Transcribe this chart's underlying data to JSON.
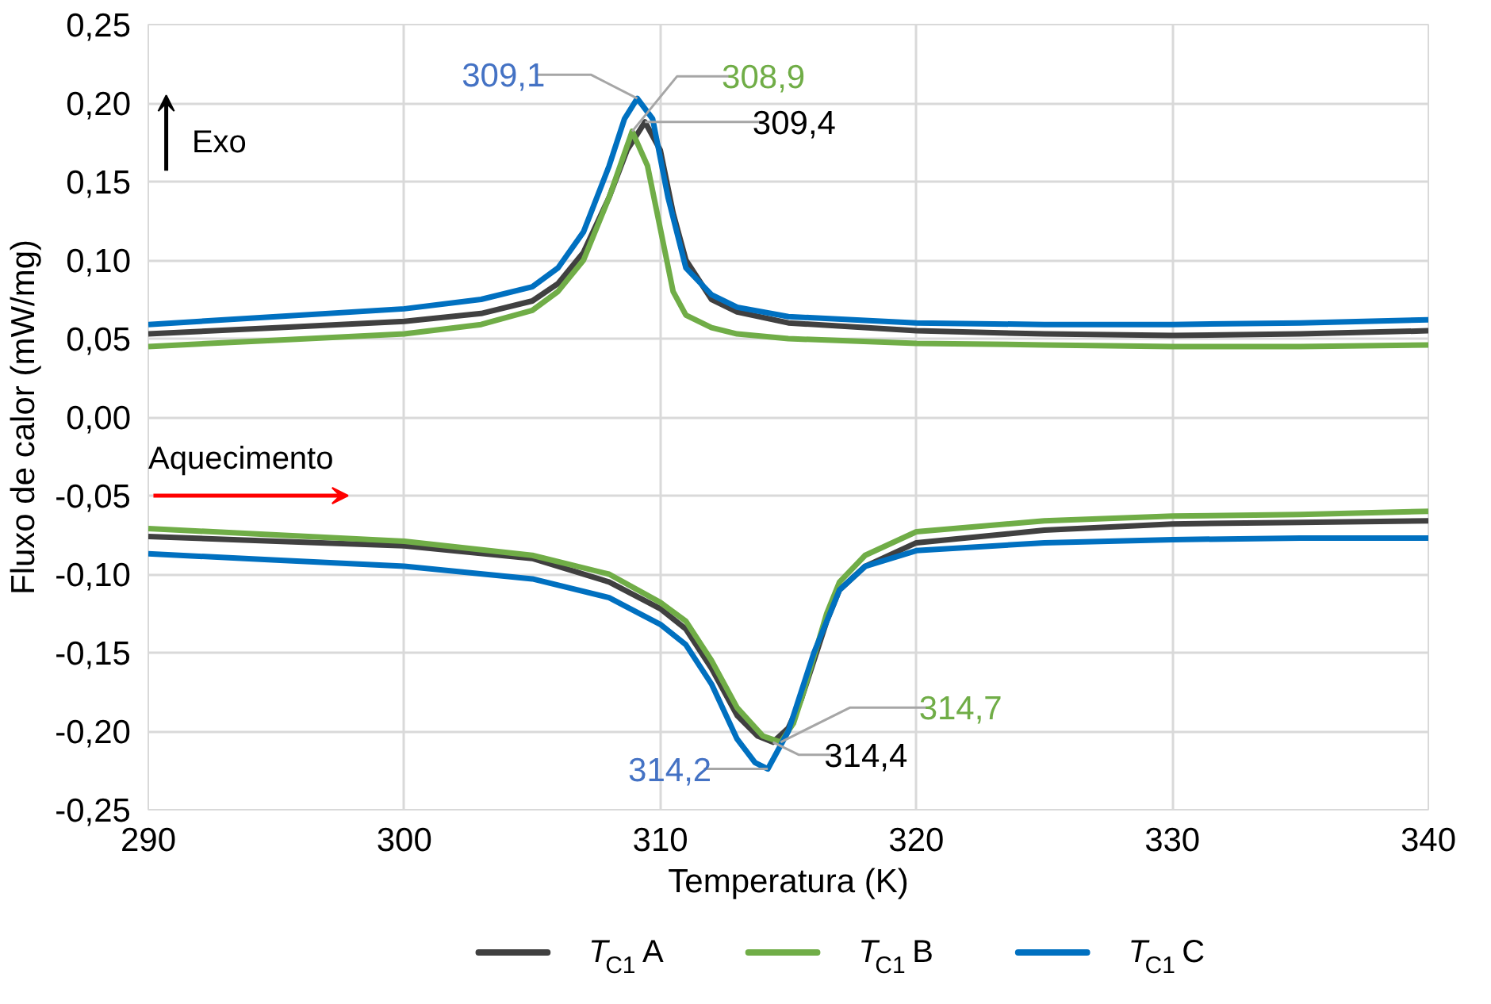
{
  "chart_data": {
    "type": "line",
    "xlabel": "Temperatura (K)",
    "ylabel": "Fluxo de calor (mW/mg)",
    "xlim": [
      290,
      340
    ],
    "xticks": [
      290,
      300,
      310,
      320,
      330,
      340
    ],
    "ylim": [
      -0.25,
      0.25
    ],
    "yticks": [
      {
        "value": -0.25,
        "label": "-0,25"
      },
      {
        "value": -0.2,
        "label": "-0,20"
      },
      {
        "value": -0.15,
        "label": "-0,15"
      },
      {
        "value": -0.1,
        "label": "-0,10"
      },
      {
        "value": -0.05,
        "label": "-0,05"
      },
      {
        "value": 0,
        "label": "0,00"
      },
      {
        "value": 0.05,
        "label": "0,05"
      },
      {
        "value": 0.1,
        "label": "0,10"
      },
      {
        "value": 0.15,
        "label": "0,15"
      },
      {
        "value": 0.2,
        "label": "0,20"
      },
      {
        "value": 0.25,
        "label": "0,25"
      }
    ],
    "grid": true,
    "legend": "bottom",
    "line_style": "solid",
    "marker": "none",
    "series": [
      {
        "name": "T$_{C1}$ A",
        "color": "#404040",
        "x": [
          290,
          295,
          300,
          303,
          305,
          306,
          307,
          308,
          308.7,
          309.4,
          310,
          310.5,
          311,
          312,
          313,
          315,
          320,
          325,
          330,
          335,
          340
        ],
        "values": [
          0.053,
          0.057,
          0.061,
          0.066,
          0.074,
          0.085,
          0.105,
          0.14,
          0.17,
          0.188,
          0.17,
          0.13,
          0.1,
          0.075,
          0.067,
          0.06,
          0.055,
          0.053,
          0.052,
          0.053,
          0.055
        ]
      },
      {
        "name": "T$_{C1}$ B",
        "color": "#70ad47",
        "x": [
          290,
          295,
          300,
          303,
          305,
          306,
          307,
          308,
          308.9,
          309.5,
          310,
          310.5,
          311,
          312,
          313,
          315,
          320,
          325,
          330,
          335,
          340
        ],
        "values": [
          0.045,
          0.049,
          0.053,
          0.059,
          0.068,
          0.08,
          0.1,
          0.14,
          0.182,
          0.16,
          0.12,
          0.08,
          0.065,
          0.057,
          0.053,
          0.05,
          0.047,
          0.046,
          0.045,
          0.045,
          0.046
        ]
      },
      {
        "name": "T$_{C1}$ C",
        "color": "#0070c0",
        "x": [
          290,
          295,
          300,
          303,
          305,
          306,
          307,
          308,
          308.6,
          309.1,
          309.7,
          310.3,
          311,
          312,
          313,
          315,
          320,
          325,
          330,
          335,
          340
        ],
        "values": [
          0.059,
          0.064,
          0.069,
          0.075,
          0.083,
          0.095,
          0.118,
          0.16,
          0.19,
          0.203,
          0.19,
          0.14,
          0.095,
          0.078,
          0.07,
          0.064,
          0.06,
          0.059,
          0.059,
          0.06,
          0.062
        ]
      },
      {
        "color": "#404040",
        "x": [
          290,
          295,
          300,
          305,
          308,
          310,
          311,
          312,
          313,
          313.8,
          314.4,
          315,
          315.5,
          316.5,
          317,
          318,
          320,
          325,
          330,
          335,
          340
        ],
        "values": [
          -0.076,
          -0.079,
          -0.082,
          -0.09,
          -0.105,
          -0.122,
          -0.135,
          -0.16,
          -0.19,
          -0.203,
          -0.207,
          -0.198,
          -0.18,
          -0.13,
          -0.11,
          -0.095,
          -0.08,
          -0.072,
          -0.068,
          -0.067,
          -0.066
        ]
      },
      {
        "color": "#70ad47",
        "x": [
          290,
          295,
          300,
          305,
          308,
          310,
          311,
          312,
          313,
          314,
          314.7,
          315.2,
          315.5,
          316.5,
          317,
          318,
          320,
          325,
          330,
          335,
          340
        ],
        "values": [
          -0.071,
          -0.075,
          -0.079,
          -0.088,
          -0.1,
          -0.118,
          -0.13,
          -0.155,
          -0.185,
          -0.203,
          -0.207,
          -0.195,
          -0.18,
          -0.125,
          -0.105,
          -0.088,
          -0.073,
          -0.066,
          -0.063,
          -0.062,
          -0.06
        ]
      },
      {
        "color": "#0070c0",
        "x": [
          290,
          295,
          300,
          305,
          308,
          310,
          311,
          312,
          313,
          313.7,
          314.2,
          315,
          316,
          317,
          318,
          320,
          325,
          330,
          335,
          340
        ],
        "values": [
          -0.087,
          -0.091,
          -0.095,
          -0.103,
          -0.115,
          -0.132,
          -0.145,
          -0.17,
          -0.205,
          -0.22,
          -0.224,
          -0.2,
          -0.15,
          -0.11,
          -0.095,
          -0.085,
          -0.08,
          -0.078,
          -0.077,
          -0.077
        ]
      }
    ],
    "annotations": [
      {
        "text": "309,1",
        "x": 309.1,
        "y": 0.203
      },
      {
        "text": "308,9",
        "x": 308.9,
        "y": 0.182
      },
      {
        "text": "309,4",
        "x": 309.4,
        "y": 0.188
      },
      {
        "text": "314,2",
        "x": 314.2,
        "y": -0.224
      },
      {
        "text": "314,7",
        "x": 314.7,
        "y": -0.207
      },
      {
        "text": "314,4",
        "x": 314.4,
        "y": -0.207
      },
      "Exo",
      "Aquecimento"
    ]
  }
}
